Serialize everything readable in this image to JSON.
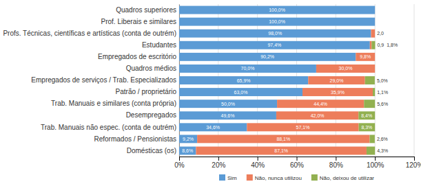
{
  "chart_data": {
    "type": "bar",
    "orientation": "horizontal",
    "stacked": true,
    "data_labels": true,
    "grid": true,
    "legend": "bottom",
    "categories": [
      "Quadros superiores",
      "Prof. Liberais e similares",
      "Profs. Técnicas, científicas e artísticas (conta de outrém)",
      "Estudantes",
      "Empregados de escritório",
      "Quadros médios",
      "Empregados de serviços / Trab. Especializados",
      "Patrão / proprietário",
      "Trab. Manuais e similares (conta própria)",
      "Desempregados",
      "Trab. Manuais não espec. (conta de outrém)",
      "Reformados / Pensionistas",
      "Domésticas (os)"
    ],
    "series": [
      {
        "name": "Sim",
        "color": "#5B9BD5",
        "values": [
          100.0,
          100.0,
          98.0,
          97.4,
          90.2,
          70.0,
          65.9,
          63.0,
          50.0,
          49.6,
          34.6,
          9.2,
          8.6
        ],
        "value_labels": [
          "100,0%",
          "100,0%",
          "98,0%",
          "97,4%",
          "90,2%",
          "70,0%",
          "65,9%",
          "63,0%",
          "50,0%",
          "49,6%",
          "34,6%",
          "9,2%",
          "8,6%"
        ]
      },
      {
        "name": "Não, nunca utilizou",
        "color": "#ED7D5B",
        "values": [
          0.0,
          0.0,
          2.0,
          0.9,
          9.8,
          30.0,
          29.0,
          35.9,
          44.4,
          42.0,
          57.1,
          88.1,
          87.1
        ],
        "value_labels": [
          null,
          null,
          "2,0",
          "0,9",
          "9,8%",
          "30,0%",
          "29,0%",
          "35,9%",
          "44,4%",
          "42,0%",
          "57,1%",
          "88,1%",
          "87,1%"
        ]
      },
      {
        "name": "Não, deixou de utilizar",
        "color": "#92B050",
        "values": [
          0.0,
          0.0,
          0.0,
          1.8,
          0.0,
          0.0,
          5.0,
          1.1,
          5.6,
          8.4,
          8.3,
          2.6,
          4.3
        ],
        "value_labels": [
          null,
          null,
          null,
          "1,8%",
          null,
          null,
          "5,0%",
          "1,1%",
          "5,6%",
          "8,4%",
          "8,3%",
          "2,6%",
          "4,3%"
        ]
      }
    ],
    "xlim": [
      0,
      120
    ],
    "xticks": [
      {
        "value": 0,
        "label": "0%"
      },
      {
        "value": 20,
        "label": "20%"
      },
      {
        "value": 40,
        "label": "40%"
      },
      {
        "value": 60,
        "label": "60%"
      },
      {
        "value": 80,
        "label": "80%"
      },
      {
        "value": 100,
        "label": "100%"
      },
      {
        "value": 120,
        "label": "120%"
      }
    ]
  }
}
